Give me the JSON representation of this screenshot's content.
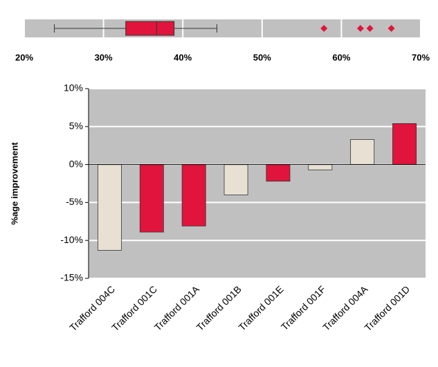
{
  "chart_data": [
    {
      "type": "box",
      "xlim": [
        20,
        70
      ],
      "xticks": [
        {
          "value": 20,
          "label": "20%"
        },
        {
          "value": 30,
          "label": "30%"
        },
        {
          "value": 40,
          "label": "40%"
        },
        {
          "value": 50,
          "label": "50%"
        },
        {
          "value": 60,
          "label": "60%"
        },
        {
          "value": 70,
          "label": "70%"
        }
      ],
      "box": {
        "whisker_low": 23.8,
        "q1": 32.8,
        "median": 36.7,
        "q3": 38.9,
        "whisker_high": 44.3
      },
      "outliers": [
        57.8,
        62.4,
        63.6,
        66.3
      ],
      "color": "#e0143c",
      "grid": true
    },
    {
      "type": "bar",
      "y_label": "%age improvement",
      "categories": [
        "Trafford 004C",
        "Trafford 001C",
        "Trafford 001A",
        "Trafford 001B",
        "Trafford 001E",
        "Trafford 001F",
        "Trafford 004A",
        "Trafford 001D"
      ],
      "values": [
        -11.3,
        -8.9,
        -8.1,
        -4.0,
        -2.2,
        -0.7,
        3.3,
        5.4
      ],
      "colors": [
        "#e8e0d2",
        "#e0143c",
        "#e0143c",
        "#e8e0d2",
        "#e0143c",
        "#e8e0d2",
        "#e8e0d2",
        "#e0143c"
      ],
      "ylim": [
        -15,
        10
      ],
      "yticks": [
        {
          "value": -15,
          "label": "-15%"
        },
        {
          "value": -10,
          "label": "-10%"
        },
        {
          "value": -5,
          "label": "-5%"
        },
        {
          "value": 0,
          "label": "0%"
        },
        {
          "value": 5,
          "label": "5%"
        },
        {
          "value": 10,
          "label": "10%"
        }
      ],
      "grid": true
    }
  ]
}
